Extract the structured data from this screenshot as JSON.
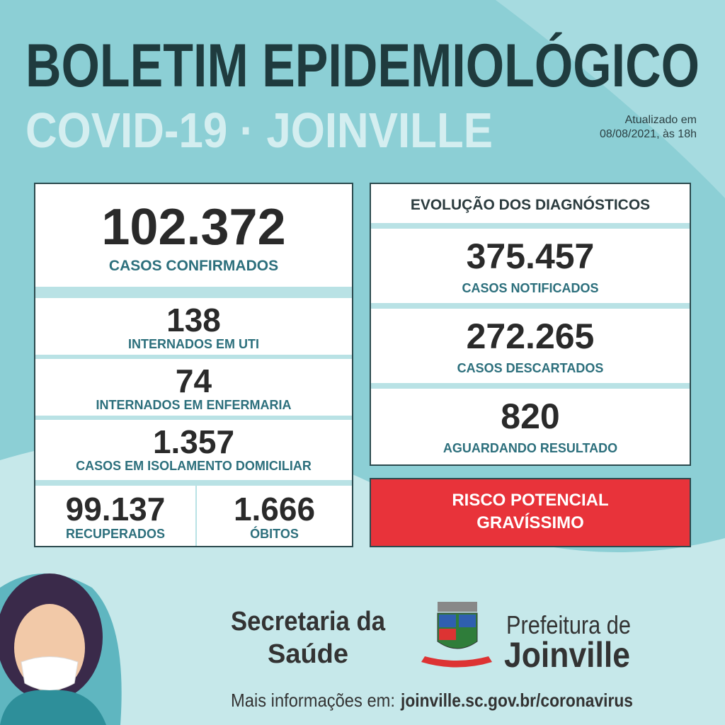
{
  "header": {
    "title": "BOLETIM EPIDEMIOLÓGICO",
    "subtitle": "COVID-19 · JOINVILLE",
    "updated": [
      "Atualizado em",
      "08/08/2021, às 18h"
    ]
  },
  "left": {
    "main": {
      "value": "102.372",
      "label": "CASOS CONFIRMADOS"
    },
    "items": [
      {
        "value": "138",
        "label": "INTERNADOS EM UTI"
      },
      {
        "value": "74",
        "label": "INTERNADOS EM ENFERMARIA"
      },
      {
        "value": "1.357",
        "label": "CASOS EM ISOLAMENTO DOMICILIAR"
      }
    ],
    "bottom": [
      {
        "value": "99.137",
        "label": "RECUPERADOS"
      },
      {
        "value": "1.666",
        "label": "ÓBITOS"
      }
    ]
  },
  "right": {
    "title": "EVOLUÇÃO DOS DIAGNÓSTICOS",
    "items": [
      {
        "value": "375.457",
        "label": "CASOS NOTIFICADOS"
      },
      {
        "value": "272.265",
        "label": "CASOS DESCARTADOS"
      },
      {
        "value": "820",
        "label": "AGUARDANDO RESULTADO"
      }
    ],
    "alert": [
      "RISCO POTENCIAL",
      "GRAVÍSSIMO"
    ]
  },
  "footer": {
    "secretaria": [
      "Secretaria da",
      "Saúde"
    ],
    "prefeitura": [
      "Prefeitura de",
      "Joinville"
    ],
    "info": "Mais informações em:",
    "url": "joinville.sc.gov.br/coronavirus"
  }
}
